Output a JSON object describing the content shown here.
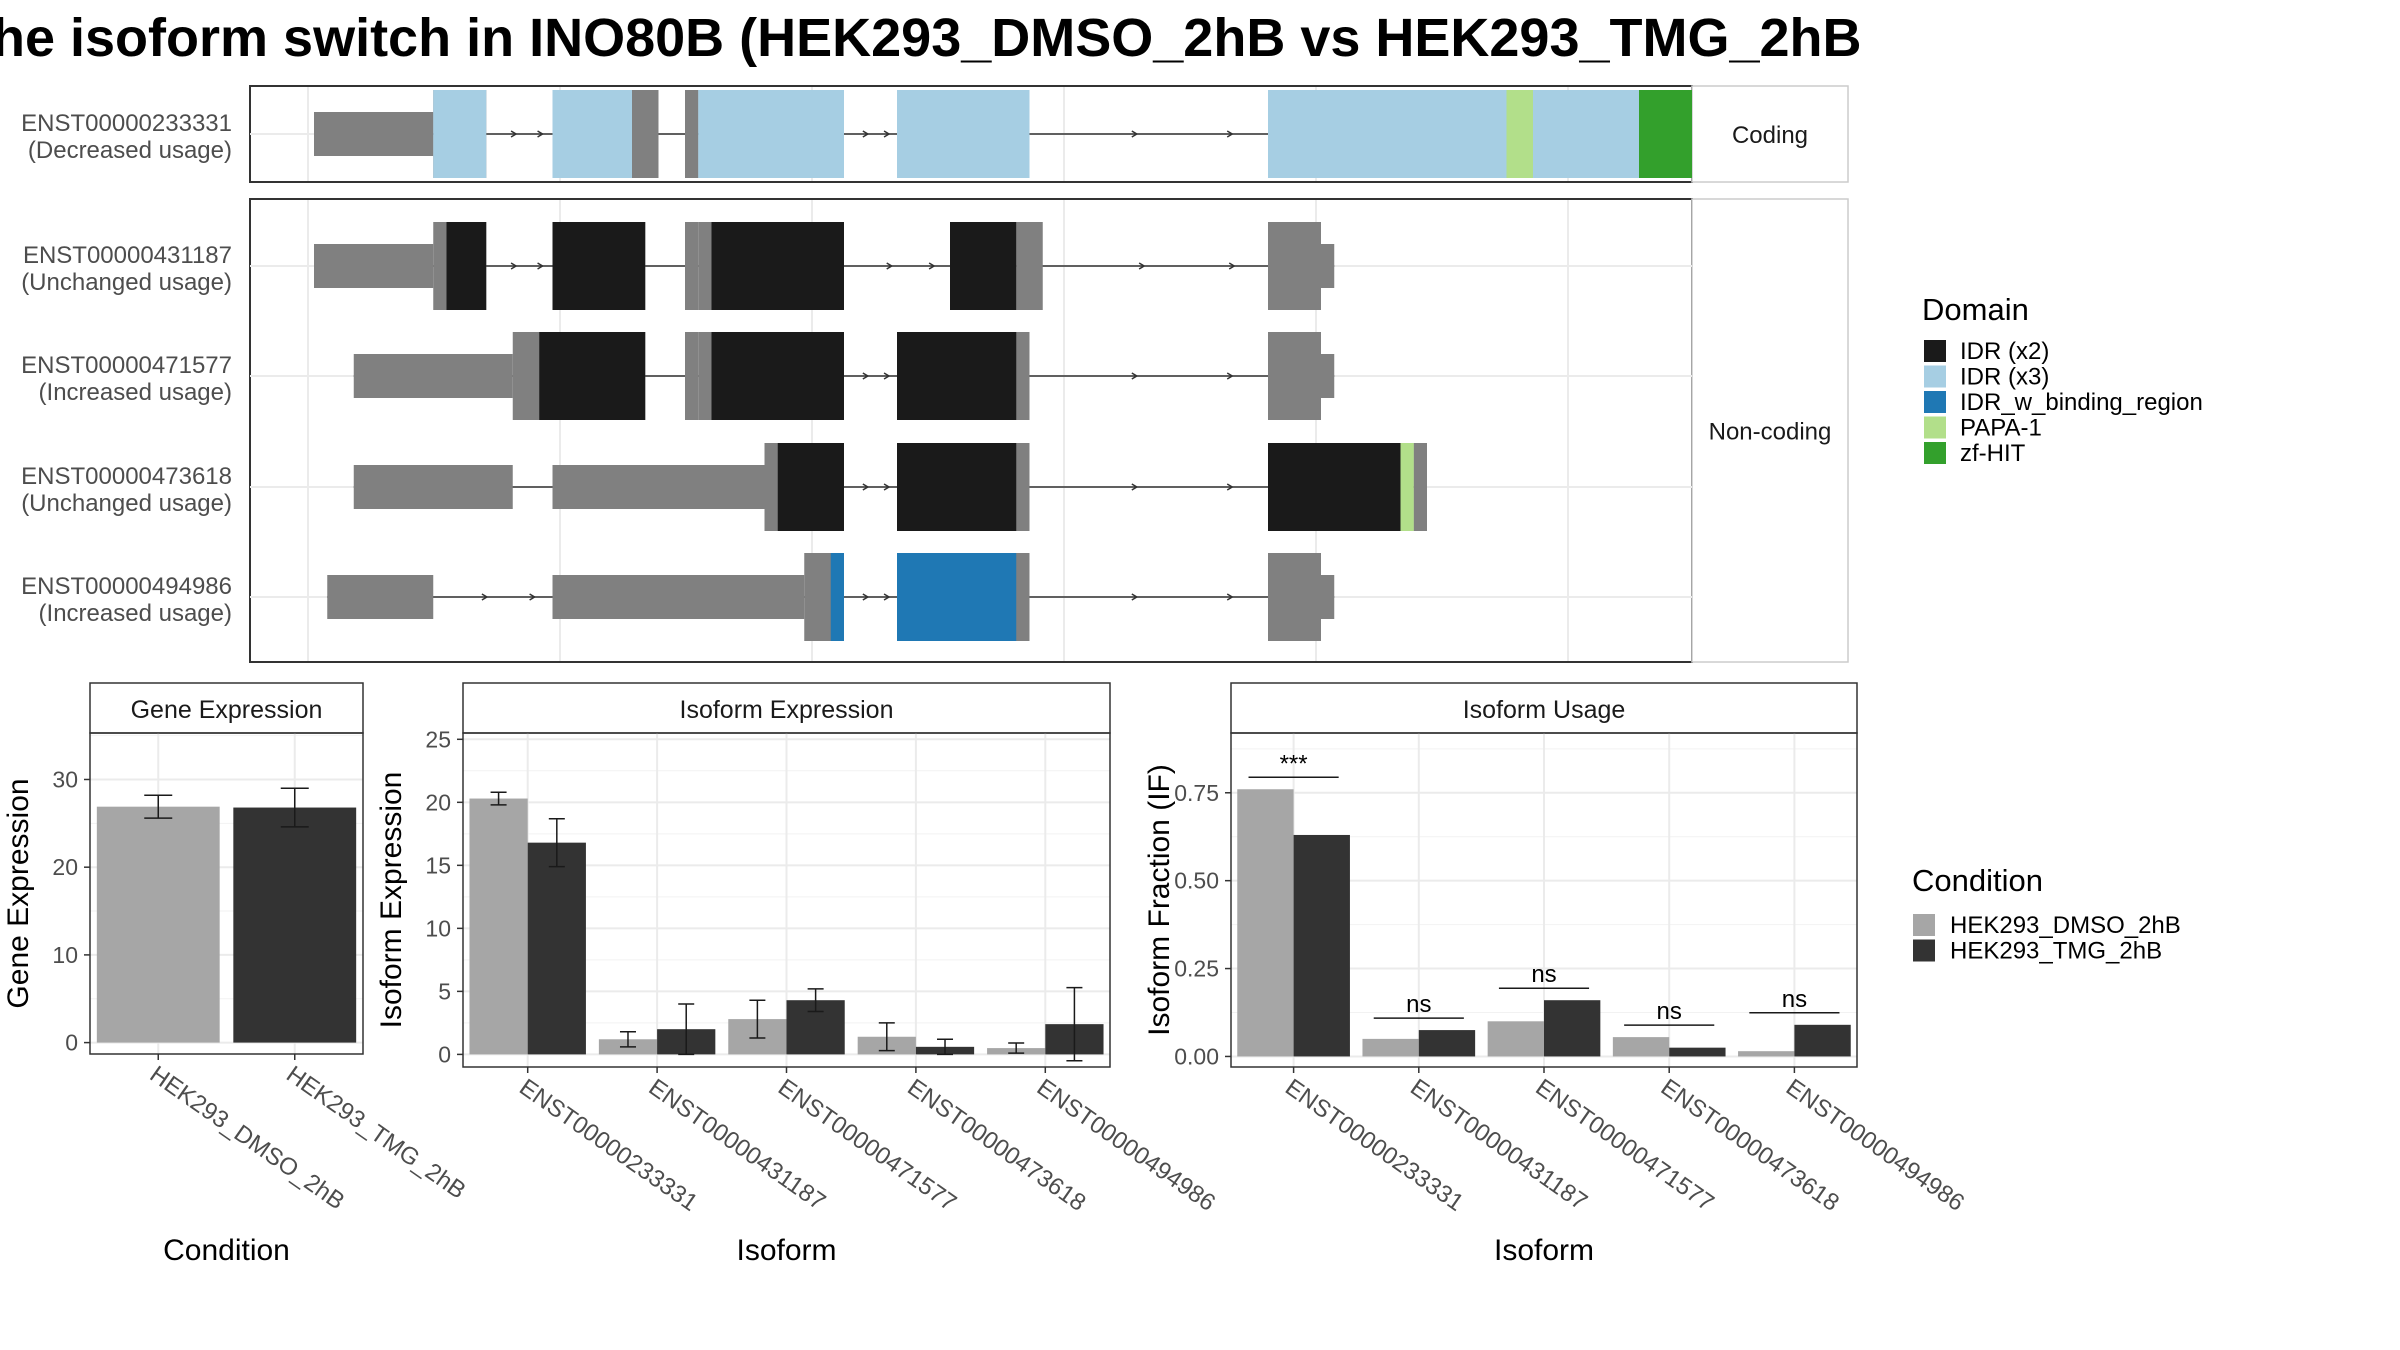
{
  "title": "he isoform switch in INO80B (HEK293_DMSO_2hB vs HEK293_TMG_2hB",
  "colors": {
    "IDR (x2)": "#1a1a1a",
    "IDR (x3)": "#a6cee3",
    "IDR_w_binding_region": "#1f78b4",
    "PAPA-1": "#b2df8a",
    "zf-HIT": "#33a02c",
    "intron_gray": "#808080",
    "cond1": "#a6a6a6",
    "cond2": "#333333"
  },
  "structure": {
    "facet_coding": "Coding",
    "facet_noncoding": "Non-coding",
    "transcripts": [
      {
        "id": "ENST00000233331",
        "usage": "(Decreased usage)",
        "facet": "coding",
        "exons": [
          [
            1,
            10,
            "u"
          ],
          [
            10,
            14,
            "c"
          ],
          [
            19,
            25,
            "c"
          ],
          [
            25,
            27,
            "c"
          ],
          [
            29,
            30,
            "c"
          ],
          [
            30,
            41,
            "c"
          ],
          [
            45,
            55,
            "c"
          ],
          [
            73,
            100,
            "c"
          ],
          [
            100,
            104,
            "u"
          ]
        ],
        "domains": [
          [
            10,
            14,
            "IDR (x3)"
          ],
          [
            19,
            25,
            "IDR (x3)"
          ],
          [
            30,
            41,
            "IDR (x3)"
          ],
          [
            45,
            55,
            "IDR (x3)"
          ],
          [
            73,
            91,
            "IDR (x3)"
          ],
          [
            91,
            93,
            "PAPA-1"
          ],
          [
            93,
            101,
            "IDR (x3)"
          ],
          [
            101,
            105,
            "zf-HIT"
          ]
        ]
      },
      {
        "id": "ENST00000431187",
        "usage": "(Unchanged usage)",
        "facet": "noncoding",
        "exons": [
          [
            1,
            10,
            "u"
          ],
          [
            10,
            14,
            "c"
          ],
          [
            19,
            26,
            "c"
          ],
          [
            29,
            30,
            "c"
          ],
          [
            30,
            41,
            "c"
          ],
          [
            49,
            54,
            "c"
          ],
          [
            54,
            56,
            "c"
          ],
          [
            73,
            77,
            "c"
          ],
          [
            77,
            78,
            "u"
          ]
        ],
        "domains": [
          [
            11,
            14,
            "IDR (x2)"
          ],
          [
            19,
            26,
            "IDR (x2)"
          ],
          [
            31,
            41,
            "IDR (x2)"
          ],
          [
            49,
            54,
            "IDR (x2)"
          ]
        ]
      },
      {
        "id": "ENST00000471577",
        "usage": "(Increased usage)",
        "facet": "noncoding",
        "exons": [
          [
            4,
            16,
            "u"
          ],
          [
            16,
            26,
            "c"
          ],
          [
            29,
            30,
            "c"
          ],
          [
            30,
            41,
            "c"
          ],
          [
            45,
            55,
            "c"
          ],
          [
            73,
            77,
            "c"
          ],
          [
            77,
            78,
            "u"
          ]
        ],
        "domains": [
          [
            18,
            26,
            "IDR (x2)"
          ],
          [
            31,
            41,
            "IDR (x2)"
          ],
          [
            45,
            54,
            "IDR (x2)"
          ]
        ]
      },
      {
        "id": "ENST00000473618",
        "usage": "(Unchanged usage)",
        "facet": "noncoding",
        "exons": [
          [
            4,
            16,
            "u"
          ],
          [
            19,
            30,
            "u"
          ],
          [
            29,
            35,
            "u"
          ],
          [
            35,
            41,
            "c"
          ],
          [
            45,
            55,
            "c"
          ],
          [
            73,
            84,
            "c"
          ],
          [
            84,
            85,
            "c"
          ]
        ],
        "domains": [
          [
            36,
            41,
            "IDR (x2)"
          ],
          [
            45,
            54,
            "IDR (x2)"
          ],
          [
            73,
            83,
            "IDR (x2)"
          ],
          [
            83,
            84,
            "PAPA-1"
          ]
        ]
      },
      {
        "id": "ENST00000494986",
        "usage": "(Increased usage)",
        "facet": "noncoding",
        "exons": [
          [
            2,
            10,
            "u"
          ],
          [
            19,
            29,
            "u"
          ],
          [
            29,
            38,
            "u"
          ],
          [
            38,
            41,
            "c"
          ],
          [
            45,
            55,
            "c"
          ],
          [
            73,
            77,
            "c"
          ],
          [
            77,
            78,
            "u"
          ]
        ],
        "domains": [
          [
            40,
            41,
            "IDR_w_binding_region"
          ],
          [
            45,
            54,
            "IDR_w_binding_region"
          ]
        ]
      }
    ],
    "domain_legend_title": "Domain",
    "domain_legend": [
      "IDR (x2)",
      "IDR (x3)",
      "IDR_w_binding_region",
      "PAPA-1",
      "zf-HIT"
    ]
  },
  "condition_legend_title": "Condition",
  "condition_legend": [
    "HEK293_DMSO_2hB",
    "HEK293_TMG_2hB"
  ],
  "chart_data": [
    {
      "type": "bar",
      "title": "Gene Expression",
      "xlabel": "Condition",
      "ylabel": "Gene Expression",
      "categories": [
        "HEK293_DMSO_2hB",
        "HEK293_TMG_2hB"
      ],
      "values": [
        26.9,
        26.8
      ],
      "errors": [
        1.3,
        2.2
      ],
      "ylim": [
        -1.3,
        35.3
      ],
      "yticks": [
        0,
        10,
        20,
        30
      ]
    },
    {
      "type": "bar",
      "title": "Isoform Expression",
      "xlabel": "Isoform",
      "ylabel": "Isoform Expression",
      "categories": [
        "ENST00000233331",
        "ENST00000431187",
        "ENST00000471577",
        "ENST00000473618",
        "ENST00000494986"
      ],
      "series": [
        {
          "name": "HEK293_DMSO_2hB",
          "values": [
            20.3,
            1.2,
            2.8,
            1.4,
            0.5
          ],
          "errors": [
            0.5,
            0.6,
            1.5,
            1.1,
            0.4
          ]
        },
        {
          "name": "HEK293_TMG_2hB",
          "values": [
            16.8,
            2.0,
            4.3,
            0.6,
            2.4
          ],
          "errors": [
            1.9,
            2.0,
            0.9,
            0.6,
            2.9
          ]
        }
      ],
      "ylim": [
        -1,
        25.5
      ],
      "yticks": [
        0,
        5,
        10,
        15,
        20,
        25
      ]
    },
    {
      "type": "bar",
      "title": "Isoform Usage",
      "xlabel": "Isoform",
      "ylabel": "Isoform Fraction (IF)",
      "categories": [
        "ENST00000233331",
        "ENST00000431187",
        "ENST00000471577",
        "ENST00000473618",
        "ENST00000494986"
      ],
      "series": [
        {
          "name": "HEK293_DMSO_2hB",
          "values": [
            0.76,
            0.05,
            0.1,
            0.055,
            0.015
          ]
        },
        {
          "name": "HEK293_TMG_2hB",
          "values": [
            0.63,
            0.075,
            0.16,
            0.025,
            0.09
          ]
        }
      ],
      "significance": [
        "***",
        "ns",
        "ns",
        "ns",
        "ns"
      ],
      "ylim": [
        -0.03,
        0.92
      ],
      "yticks": [
        "0.00",
        "0.25",
        "0.50",
        "0.75"
      ]
    }
  ]
}
